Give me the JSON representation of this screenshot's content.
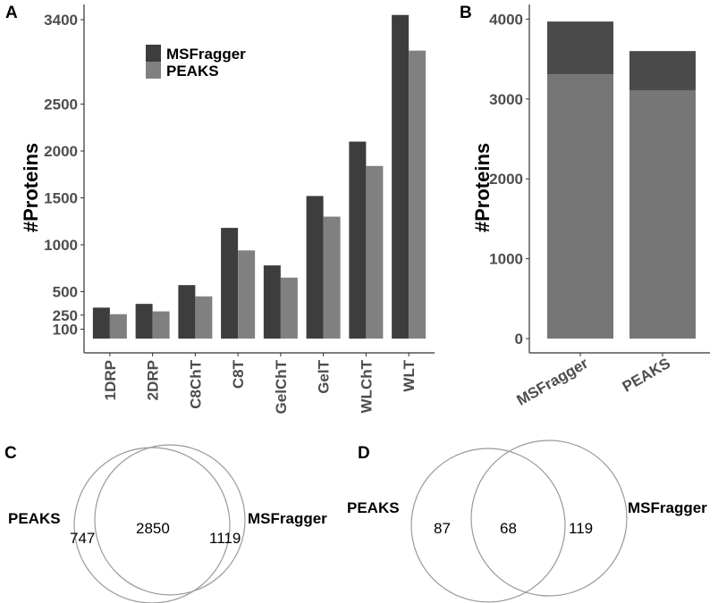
{
  "colors": {
    "msfragger": "#3d3d3d",
    "peaks": "#808080",
    "stackTop": "#4a4a4a",
    "stackBottom": "#767676",
    "axis": "#333333",
    "text": "#4d4d4d",
    "circle": "#9a9a9a"
  },
  "chart_data": [
    {
      "panel": "A",
      "type": "bar",
      "ylabel": "#Proteins",
      "xlabel": "",
      "yticks": [
        100,
        250,
        500,
        1000,
        1500,
        2000,
        2500,
        3400
      ],
      "ylim": [
        0,
        3400
      ],
      "categories": [
        "1DRP",
        "2DRP",
        "C8ChT",
        "C8T",
        "GelChT",
        "GelT",
        "WLChT",
        "WLT"
      ],
      "series": [
        {
          "name": "MSFragger",
          "values": [
            330,
            370,
            570,
            1180,
            780,
            1520,
            2100,
            3450
          ]
        },
        {
          "name": "PEAKS",
          "values": [
            260,
            290,
            450,
            940,
            650,
            1300,
            1840,
            3070
          ]
        }
      ],
      "legend_position": "top-center"
    },
    {
      "panel": "B",
      "type": "bar",
      "stacked": true,
      "ylabel": "#Proteins",
      "yticks": [
        0,
        1000,
        2000,
        3000,
        4000
      ],
      "ylim": [
        0,
        4150
      ],
      "categories": [
        "MSFragger",
        "PEAKS"
      ],
      "series": [
        {
          "name": "lower",
          "values": [
            3310,
            3110
          ]
        },
        {
          "name": "upper",
          "values": [
            660,
            490
          ]
        }
      ]
    }
  ],
  "venn": [
    {
      "panel": "C",
      "left_label": "PEAKS",
      "right_label": "MSFragger",
      "left_only": "747",
      "overlap": "2850",
      "right_only": "1119"
    },
    {
      "panel": "D",
      "left_label": "PEAKS",
      "right_label": "MSFragger",
      "left_only": "87",
      "overlap": "68",
      "right_only": "119"
    }
  ]
}
